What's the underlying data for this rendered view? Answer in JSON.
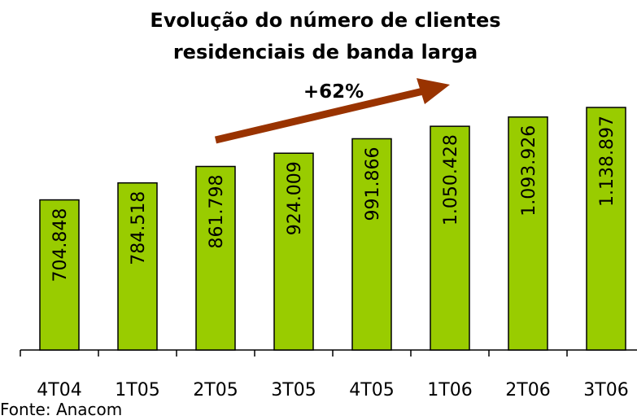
{
  "chart_data": {
    "type": "bar",
    "title": [
      "Evolução do número de clientes",
      "residenciais de banda larga"
    ],
    "annotation": "+62%",
    "source": "Fonte: Anacom",
    "categories": [
      "4T04",
      "1T05",
      "2T05",
      "3T05",
      "4T05",
      "1T06",
      "2T06",
      "3T06"
    ],
    "values": [
      704848,
      784518,
      861798,
      924009,
      991866,
      1050428,
      1093926,
      1138897
    ],
    "value_labels": [
      "704.848",
      "784.518",
      "861.798",
      "924.009",
      "991.866",
      "1.050.428",
      "1.093.926",
      "1.138.897"
    ],
    "color": "#99cc00"
  }
}
